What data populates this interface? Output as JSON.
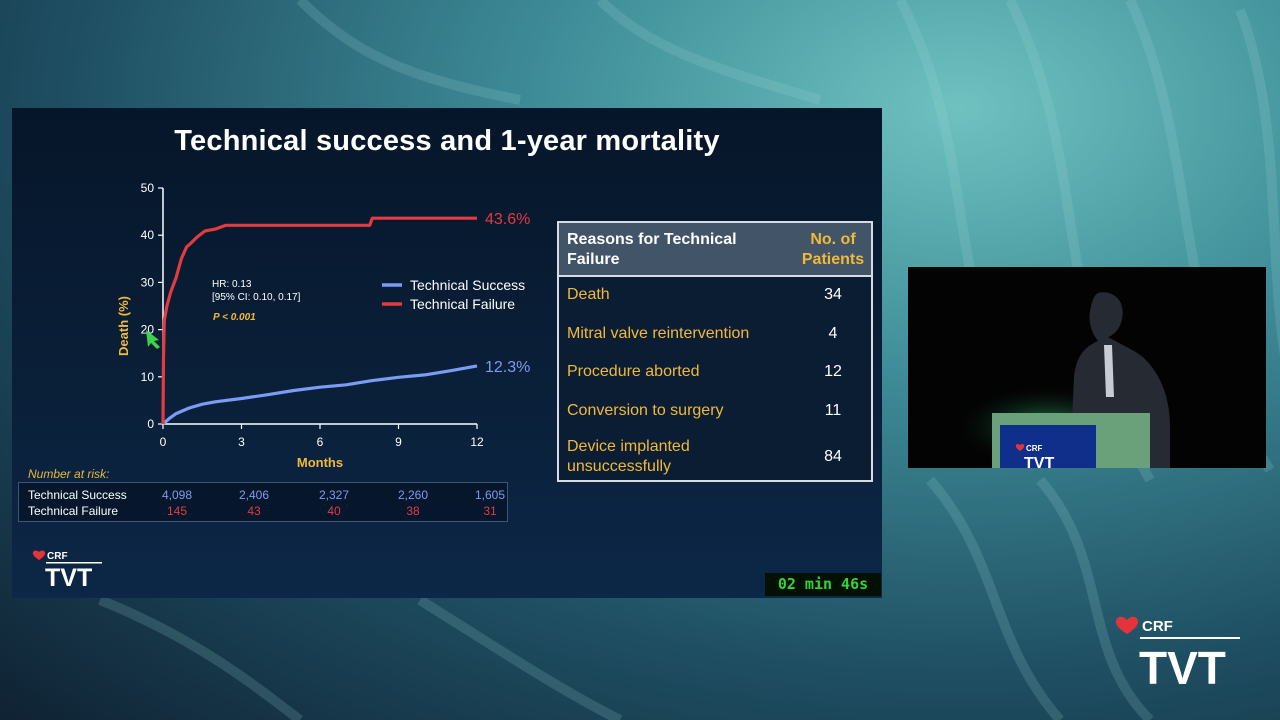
{
  "slide": {
    "title": "Technical success and 1-year mortality",
    "timer": "02 min 46s"
  },
  "chart_data": {
    "type": "line",
    "title": "",
    "xlabel": "Months",
    "ylabel": "Death (%)",
    "xlim": [
      0,
      12
    ],
    "ylim": [
      0,
      50
    ],
    "x_ticks": [
      "0",
      "3",
      "6",
      "9",
      "12"
    ],
    "y_ticks": [
      "0",
      "10",
      "20",
      "30",
      "40",
      "50"
    ],
    "legend_position": "right",
    "series": [
      {
        "name": "Technical Success",
        "color": "#7b9cf2",
        "end_label": "12.3%",
        "points": [
          [
            0,
            0
          ],
          [
            0.25,
            1.2
          ],
          [
            0.5,
            2.2
          ],
          [
            1,
            3.4
          ],
          [
            1.5,
            4.2
          ],
          [
            2,
            4.7
          ],
          [
            3,
            5.4
          ],
          [
            4,
            6.2
          ],
          [
            5,
            7.1
          ],
          [
            6,
            7.8
          ],
          [
            7,
            8.3
          ],
          [
            8,
            9.2
          ],
          [
            9,
            9.9
          ],
          [
            10,
            10.4
          ],
          [
            11,
            11.3
          ],
          [
            12,
            12.3
          ]
        ]
      },
      {
        "name": "Technical Failure",
        "color": "#e23b40",
        "end_label": "43.6%",
        "points": [
          [
            0,
            0
          ],
          [
            0.02,
            14
          ],
          [
            0.05,
            22
          ],
          [
            0.15,
            25
          ],
          [
            0.3,
            28
          ],
          [
            0.5,
            31
          ],
          [
            0.7,
            35
          ],
          [
            0.9,
            37.5
          ],
          [
            1.1,
            38.5
          ],
          [
            1.3,
            39.6
          ],
          [
            1.6,
            40.9
          ],
          [
            2.0,
            41.3
          ],
          [
            2.4,
            42.1
          ],
          [
            3,
            42.1
          ],
          [
            5,
            42.1
          ],
          [
            7.9,
            42.1
          ],
          [
            8,
            43.6
          ],
          [
            12,
            43.6
          ]
        ]
      }
    ],
    "annotations": {
      "hr": "HR: 0.13",
      "ci": "[95% CI: 0.10, 0.17]",
      "p": "P < 0.001"
    }
  },
  "risk_table": {
    "label": "Number at risk:",
    "rows": [
      {
        "name": "Technical Success",
        "color": "#7b9cf2",
        "values": [
          "4,098",
          "2,406",
          "2,327",
          "2,260",
          "1,605"
        ]
      },
      {
        "name": "Technical Failure",
        "color": "#e23b40",
        "values": [
          "145",
          "43",
          "40",
          "38",
          "31"
        ]
      }
    ]
  },
  "reasons_table": {
    "header_reason": "Reasons for Technical Failure",
    "header_count": "No. of Patients",
    "rows": [
      {
        "reason": "Death",
        "count": "34"
      },
      {
        "reason": "Mitral valve reintervention",
        "count": "4"
      },
      {
        "reason": "Procedure aborted",
        "count": "12"
      },
      {
        "reason": "Conversion to surgery",
        "count": "11"
      },
      {
        "reason": "Device implanted unsuccessfully",
        "count": "84"
      }
    ]
  },
  "branding": {
    "small_logo_top": "CRF",
    "small_logo_main": "TVT",
    "big_logo_top": "CRF",
    "big_logo_main": "TVT",
    "podium_logo_top": "CRF",
    "podium_logo_main": "TVT",
    "logo_heart_color": "#e4333b"
  }
}
